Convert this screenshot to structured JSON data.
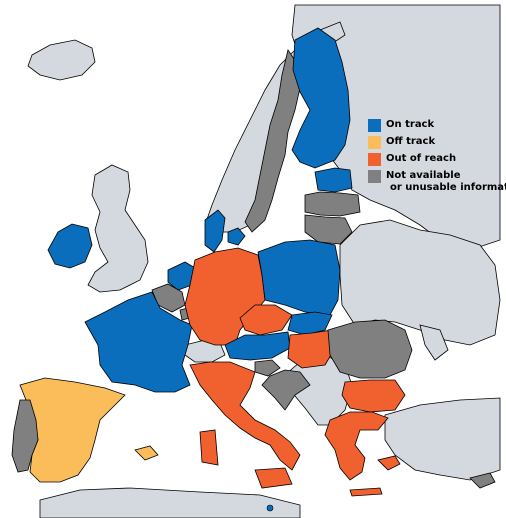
{
  "colors": {
    "sea": "#ffffff",
    "other_land": "#d4d9df",
    "on_track": "#0a6ebd",
    "off_track": "#fbbd5a",
    "out_of_reach": "#f0612f",
    "not_available": "#808080",
    "border": "#000000"
  },
  "legend": [
    {
      "key": "on_track",
      "label": "On track",
      "label_line2": ""
    },
    {
      "key": "off_track",
      "label": "Off track",
      "label_line2": ""
    },
    {
      "key": "out_of_reach",
      "label": "Out of reach",
      "label_line2": ""
    },
    {
      "key": "not_available",
      "label": "Not available",
      "label_line2": "or unusable information"
    }
  ],
  "regions": {
    "finland": "on_track",
    "sweden": "not_available",
    "norway": "other_land",
    "estonia": "on_track",
    "latvia": "not_available",
    "lithuania": "not_available",
    "denmark": "on_track",
    "ireland": "on_track",
    "united_kingdom": "other_land",
    "netherlands": "on_track",
    "belgium": "not_available",
    "luxembourg": "not_available",
    "france": "on_track",
    "germany": "out_of_reach",
    "poland": "on_track",
    "czechia": "out_of_reach",
    "slovakia": "on_track",
    "austria": "on_track",
    "hungary": "out_of_reach",
    "slovenia": "not_available",
    "croatia": "not_available",
    "italy": "out_of_reach",
    "romania": "not_available",
    "bulgaria": "out_of_reach",
    "greece": "out_of_reach",
    "cyprus": "not_available",
    "malta": "on_track",
    "spain": "off_track",
    "portugal": "not_available",
    "switzerland": "other_land"
  }
}
